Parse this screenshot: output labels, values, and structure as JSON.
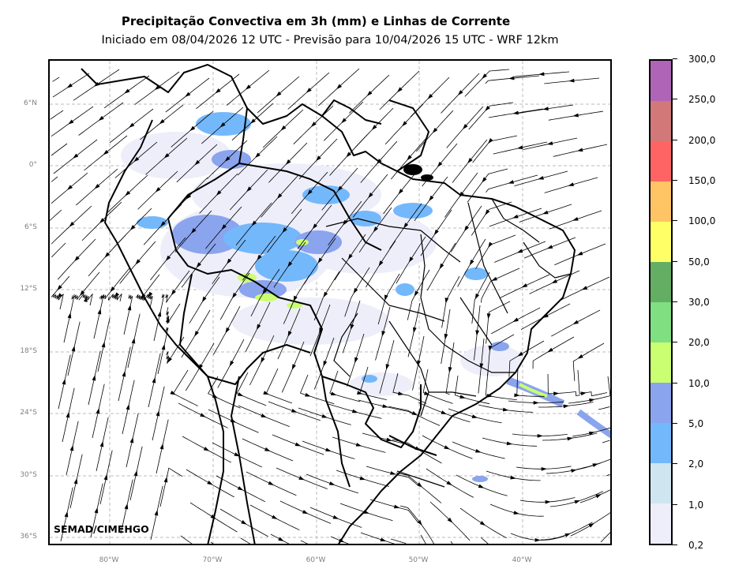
{
  "header": {
    "title": "Precipitação Convectiva em 3h (mm) e Linhas de Corrente",
    "subtitle": "Iniciado em 08/04/2026 12 UTC - Previsão para 10/04/2026 15 UTC - WRF 12km"
  },
  "map": {
    "lat_ticks": [
      "6°N",
      "0°",
      "6°S",
      "12°S",
      "18°S",
      "24°S",
      "30°S",
      "36°S"
    ],
    "lon_ticks": [
      "80°W",
      "70°W",
      "60°W",
      "50°W",
      "40°W"
    ],
    "credit": "SEMAD/CIMEHGO"
  },
  "colorbar": {
    "labels": [
      "0,2",
      "1,0",
      "2,0",
      "5,0",
      "10,0",
      "20,0",
      "30,0",
      "50,0",
      "100,0",
      "150,0",
      "200,0",
      "250,0",
      "300,0"
    ],
    "colors": [
      "#eeeefa",
      "#cfe6f0",
      "#74b8fc",
      "#8aa4ee",
      "#caff72",
      "#80df80",
      "#64ae64",
      "#ffff66",
      "#ffc464",
      "#ff6464",
      "#d27878",
      "#b064b8"
    ]
  }
}
